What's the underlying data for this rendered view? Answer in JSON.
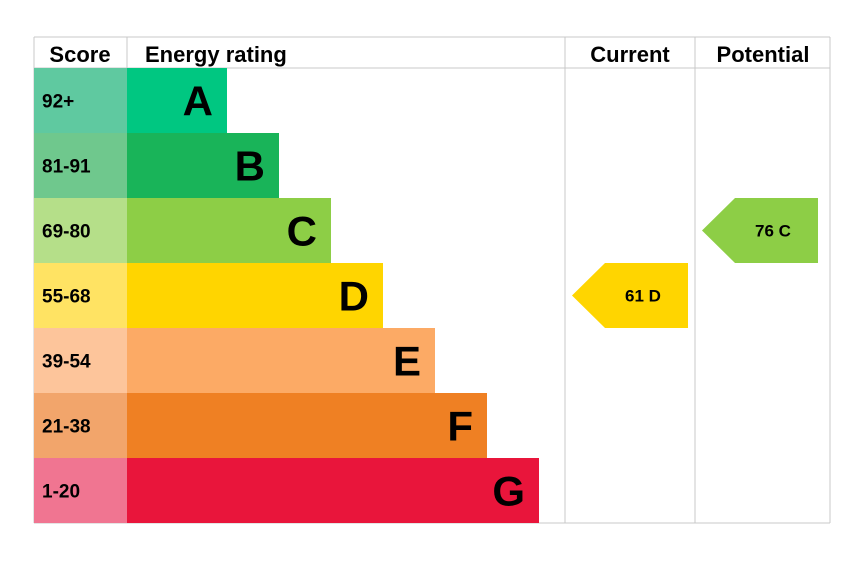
{
  "chart_data": {
    "type": "bar",
    "headers": {
      "score": "Score",
      "rating": "Energy rating",
      "current": "Current",
      "potential": "Potential"
    },
    "bands": [
      {
        "score": "92+",
        "letter": "A",
        "color": "#00c781",
        "score_bg": "#5fc9a0"
      },
      {
        "score": "81-91",
        "letter": "B",
        "color": "#19b459",
        "score_bg": "#6fc88d"
      },
      {
        "score": "69-80",
        "letter": "C",
        "color": "#8dce46",
        "score_bg": "#b5df89"
      },
      {
        "score": "55-68",
        "letter": "D",
        "color": "#ffd500",
        "score_bg": "#ffe363"
      },
      {
        "score": "39-54",
        "letter": "E",
        "color": "#fcaa65",
        "score_bg": "#fdc59b"
      },
      {
        "score": "21-38",
        "letter": "F",
        "color": "#ef8023",
        "score_bg": "#f2a56b"
      },
      {
        "score": "1-20",
        "letter": "G",
        "color": "#e9153b",
        "score_bg": "#f07591"
      }
    ],
    "current": {
      "value": 61,
      "letter": "D",
      "label": "61  D",
      "color": "#ffd500"
    },
    "potential": {
      "value": 76,
      "letter": "C",
      "label": "76  C",
      "color": "#8dce46"
    }
  }
}
